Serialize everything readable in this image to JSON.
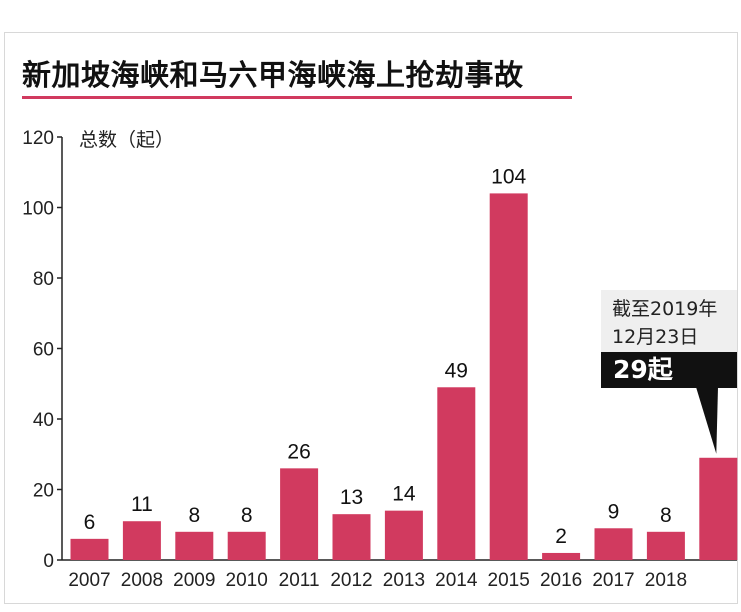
{
  "title": "新加坡海峡和马六甲海峡海上抢劫事故",
  "colors": {
    "bar": "#d13a5f",
    "title_rule": "#d13a5f",
    "axis": "#222222"
  },
  "annotation": {
    "line1": "截至2019年",
    "line2": "12月23日",
    "badge": "29起"
  },
  "chart_data": {
    "type": "bar",
    "title": "新加坡海峡和马六甲海峡海上抢劫事故",
    "ylabel": "总数（起）",
    "xlabel": "",
    "ylim": [
      0,
      120
    ],
    "yticks": [
      0,
      20,
      40,
      60,
      80,
      100,
      120
    ],
    "grid": false,
    "categories": [
      "2007",
      "2008",
      "2009",
      "2010",
      "2011",
      "2012",
      "2013",
      "2014",
      "2015",
      "2016",
      "2017",
      "2018",
      ""
    ],
    "values": [
      6,
      11,
      8,
      8,
      26,
      13,
      14,
      49,
      104,
      2,
      9,
      8,
      29
    ],
    "data_labels": [
      "6",
      "11",
      "8",
      "8",
      "26",
      "13",
      "14",
      "49",
      "104",
      "2",
      "9",
      "8",
      ""
    ]
  }
}
